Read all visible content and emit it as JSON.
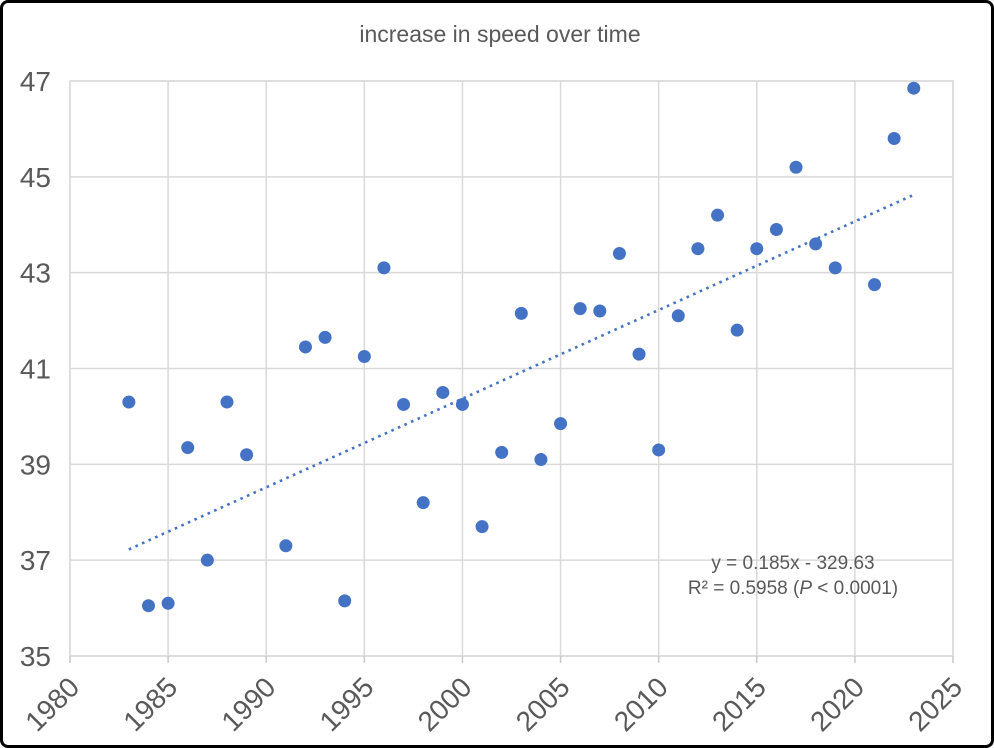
{
  "chart": {
    "title": "increase in speed over time",
    "annotation": {
      "line1": "y = 0.185x - 329.63",
      "line2_prefix": "R² = 0.5958 (",
      "line2_italic": "P",
      "line2_suffix": " < 0.0001)"
    }
  },
  "chart_data": {
    "type": "scatter",
    "title": "increase in speed over time",
    "xlabel": "",
    "ylabel": "",
    "x": [
      1983,
      1984,
      1985,
      1986,
      1987,
      1988,
      1989,
      1991,
      1992,
      1993,
      1994,
      1995,
      1996,
      1997,
      1998,
      1999,
      2000,
      2001,
      2002,
      2003,
      2004,
      2005,
      2006,
      2007,
      2008,
      2009,
      2010,
      2011,
      2012,
      2013,
      2014,
      2015,
      2016,
      2017,
      2018,
      2019,
      2021,
      2022,
      2023
    ],
    "y": [
      40.3,
      36.05,
      36.1,
      39.35,
      37.0,
      40.3,
      39.2,
      37.3,
      41.45,
      41.65,
      36.15,
      41.25,
      43.1,
      40.25,
      38.2,
      40.5,
      40.25,
      37.7,
      39.25,
      42.15,
      39.1,
      39.85,
      42.25,
      42.2,
      43.4,
      41.3,
      39.3,
      42.1,
      43.5,
      44.2,
      41.8,
      43.5,
      43.9,
      45.2,
      43.6,
      43.1,
      42.75,
      45.8,
      46.85
    ],
    "xlim": [
      1980,
      2025
    ],
    "ylim": [
      35,
      47
    ],
    "x_ticks": [
      1980,
      1985,
      1990,
      1995,
      2000,
      2005,
      2010,
      2015,
      2020,
      2025
    ],
    "y_ticks": [
      35,
      37,
      39,
      41,
      43,
      45,
      47
    ],
    "grid": true,
    "legend_position": "none",
    "marker_color": "#4472C4",
    "trendline": {
      "equation": "y = 0.185x - 329.63",
      "slope": 0.185,
      "intercept": -329.63,
      "r_squared": 0.5958,
      "p_value": "P < 0.0001",
      "x_range": [
        1983,
        2023
      ],
      "style": "dotted",
      "color": "#4472C4"
    },
    "colors": {
      "gridline": "#D9D9D9",
      "tick": "#C9C9C9",
      "axis_text": "#595959",
      "title_text": "#595959"
    }
  }
}
